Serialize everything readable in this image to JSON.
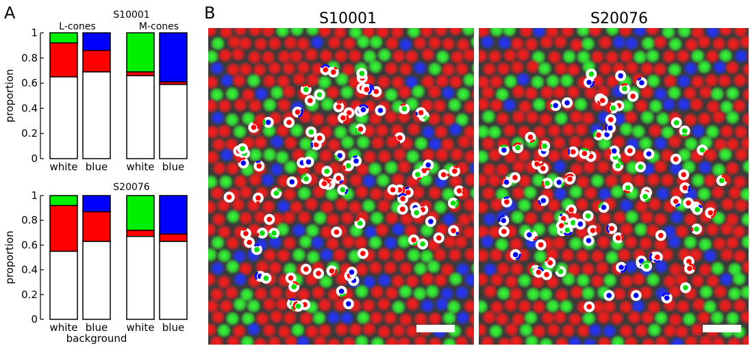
{
  "panel_a_label": "A",
  "panel_b_label": "B",
  "colors": {
    "red": "#ff0000",
    "green": "#00ee00",
    "blue": "#0000ff",
    "white": "#ffffff"
  },
  "chart_data": [
    {
      "type": "bar",
      "stacked": true,
      "title": "S10001",
      "ylabel": "proportion",
      "xlabel": "",
      "ylim": [
        0,
        1
      ],
      "yticks": [
        "0",
        "0.2",
        "0.4",
        "0.6",
        "0.8",
        "1"
      ],
      "group_labels": [
        "L-cones",
        "M-cones"
      ],
      "categories": [
        "white",
        "blue",
        "white",
        "blue"
      ],
      "groups": [
        0,
        0,
        1,
        1
      ],
      "series": [
        {
          "color": "white",
          "values": [
            0.65,
            0.69,
            0.66,
            0.59
          ]
        },
        {
          "color": "red",
          "values": [
            0.27,
            0.17,
            0.03,
            0.02
          ]
        },
        {
          "color": "green",
          "values": [
            0.08,
            0.0,
            0.31,
            0.0
          ]
        },
        {
          "color": "blue",
          "values": [
            0.0,
            0.14,
            0.0,
            0.39
          ]
        }
      ]
    },
    {
      "type": "bar",
      "stacked": true,
      "title": "S20076",
      "ylabel": "proportion",
      "xlabel": "background",
      "ylim": [
        0,
        1
      ],
      "yticks": [
        "0",
        "0.2",
        "0.4",
        "0.6",
        "0.8",
        "1"
      ],
      "group_labels": [],
      "categories": [
        "white",
        "blue",
        "white",
        "blue"
      ],
      "groups": [
        0,
        0,
        1,
        1
      ],
      "series": [
        {
          "color": "white",
          "values": [
            0.55,
            0.63,
            0.67,
            0.63
          ]
        },
        {
          "color": "red",
          "values": [
            0.37,
            0.24,
            0.05,
            0.06
          ]
        },
        {
          "color": "green",
          "values": [
            0.08,
            0.0,
            0.28,
            0.0
          ]
        },
        {
          "color": "blue",
          "values": [
            0.0,
            0.13,
            0.0,
            0.31
          ]
        }
      ]
    }
  ],
  "images": [
    {
      "title": "S10001",
      "seed": 11
    },
    {
      "title": "S20076",
      "seed": 29
    }
  ]
}
